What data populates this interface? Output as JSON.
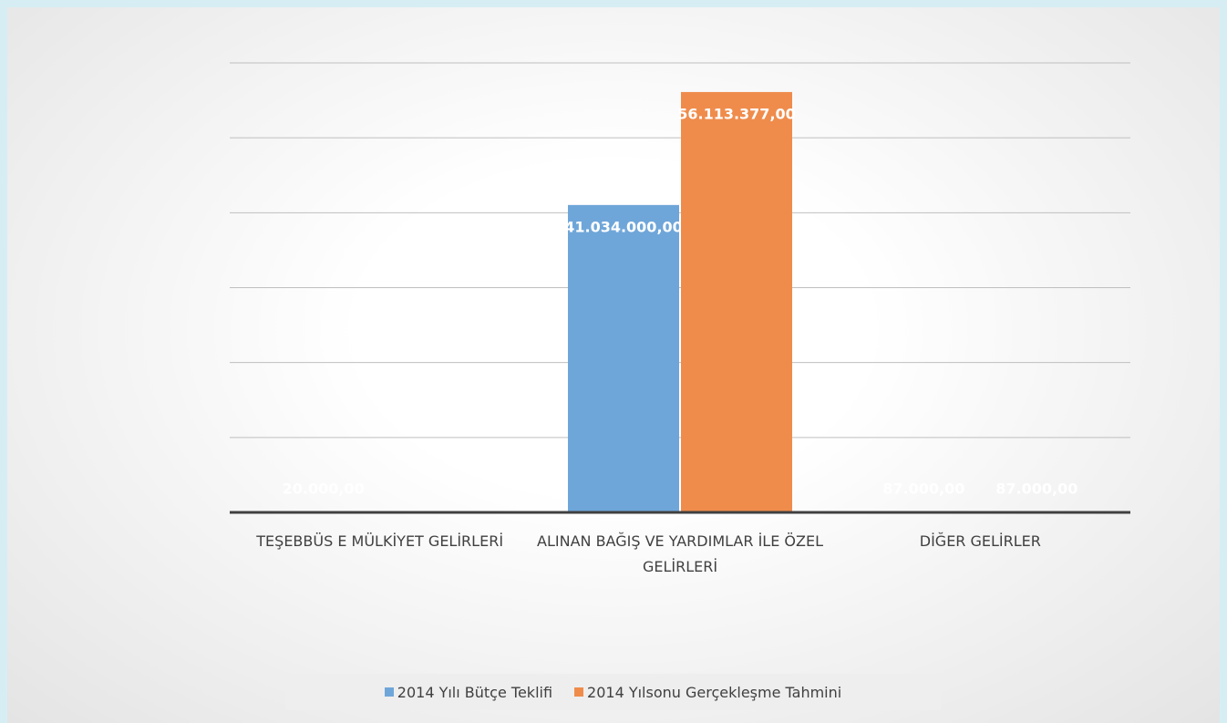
{
  "chart_data": {
    "type": "bar",
    "categories": [
      "TEŞEBBÜS E MÜLKİYET GELİRLERİ",
      "ALINAN BAĞIŞ VE YARDIMLAR İLE ÖZEL GELİRLERİ",
      "DİĞER GELİRLER"
    ],
    "series": [
      {
        "name": "2014 Yılı Bütçe Teklifi",
        "color": "#6fa6d9",
        "values": [
          20000,
          41034000,
          87000
        ],
        "value_labels": [
          "20.000,00",
          "41.034.000,00",
          "87.000,00"
        ]
      },
      {
        "name": "2014 Yılsonu Gerçekleşme Tahmini",
        "color": "#ef8c4c",
        "values": [
          null,
          56113377,
          87000
        ],
        "value_labels": [
          null,
          "56.113.377,00",
          "87.000,00"
        ]
      }
    ],
    "ylim": [
      0,
      60000000
    ],
    "yticks": [
      0,
      10000000,
      20000000,
      30000000,
      40000000,
      50000000,
      60000000
    ],
    "grid": true,
    "legend": "bottom"
  }
}
